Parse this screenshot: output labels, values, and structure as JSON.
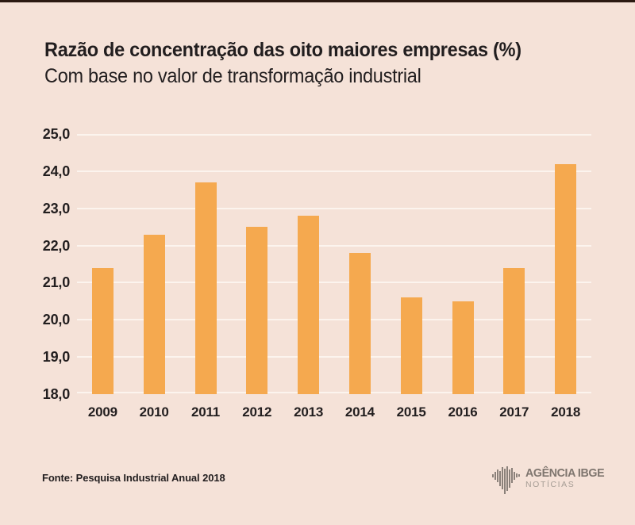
{
  "page": {
    "source": "Fonte: Pesquisa Industrial Anual 2018",
    "logo": {
      "agency": "AGÊNCIA",
      "brand": "IBGE",
      "subline": "NOTÍCIAS",
      "mark": "ibge-bars-map-logo"
    }
  },
  "colors": {
    "background": "#f5e2d8",
    "bar": "#f5a94f",
    "gridline": "#fcf4ee",
    "text": "#221e1f",
    "top_stripe": "#2b1a12",
    "logo_dark": "#7f766f",
    "logo_light": "#a69d95"
  },
  "chart_data": {
    "type": "bar",
    "title": "Razão de concentração das oito maiores empresas (%)",
    "subtitle": "Com base no valor de transformação industrial",
    "categories": [
      "2009",
      "2010",
      "2011",
      "2012",
      "2013",
      "2014",
      "2015",
      "2016",
      "2017",
      "2018"
    ],
    "values": [
      21.4,
      22.3,
      23.7,
      22.5,
      22.8,
      21.8,
      20.6,
      20.5,
      21.4,
      24.2
    ],
    "unit": "%",
    "ylim": [
      18.0,
      25.0
    ],
    "ytick_labels": [
      "25,0",
      "24,0",
      "23,0",
      "22,0",
      "21,0",
      "20,0",
      "19,0",
      "18,0"
    ],
    "xlabel": "",
    "ylabel": "",
    "grid": "horizontal",
    "legend": "none",
    "bar_color": "#f5a94f"
  }
}
